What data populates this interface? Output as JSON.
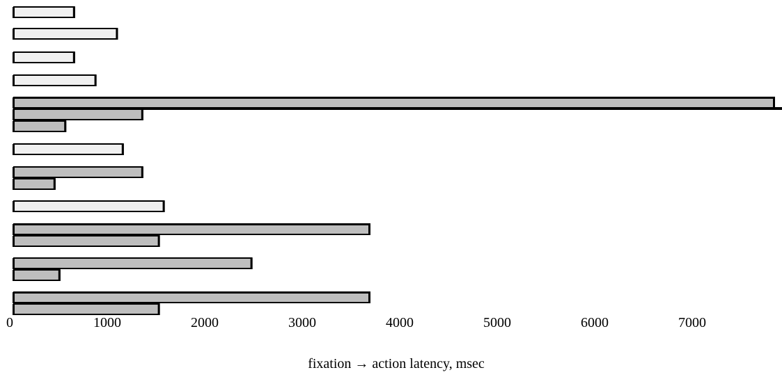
{
  "chart_data": {
    "type": "bar",
    "orientation": "horizontal",
    "xlabel": "fixation → action latency,  msec",
    "xlim": [
      0,
      7800
    ],
    "x_ticks": [
      0,
      1000,
      2000,
      3000,
      4000,
      5000,
      6000,
      7000
    ],
    "grid": false,
    "legend": "none",
    "colors": {
      "light": "#f0f0f0",
      "dark": "#bebebe",
      "stroke": "#000000"
    },
    "bars": [
      {
        "value": 620,
        "shade": "light"
      },
      {
        "value": 1060,
        "shade": "light"
      },
      {
        "value": 620,
        "shade": "light"
      },
      {
        "value": 840,
        "shade": "light"
      },
      {
        "value": 7800,
        "shade": "dark"
      },
      {
        "value": 1320,
        "shade": "dark"
      },
      {
        "value": 530,
        "shade": "dark"
      },
      {
        "value": 1120,
        "shade": "light"
      },
      {
        "value": 1320,
        "shade": "dark"
      },
      {
        "value": 420,
        "shade": "dark"
      },
      {
        "value": 1540,
        "shade": "light"
      },
      {
        "value": 3650,
        "shade": "dark"
      },
      {
        "value": 1490,
        "shade": "dark"
      },
      {
        "value": 2440,
        "shade": "dark"
      },
      {
        "value": 470,
        "shade": "dark"
      },
      {
        "value": 3650,
        "shade": "dark"
      },
      {
        "value": 1490,
        "shade": "dark"
      }
    ]
  }
}
